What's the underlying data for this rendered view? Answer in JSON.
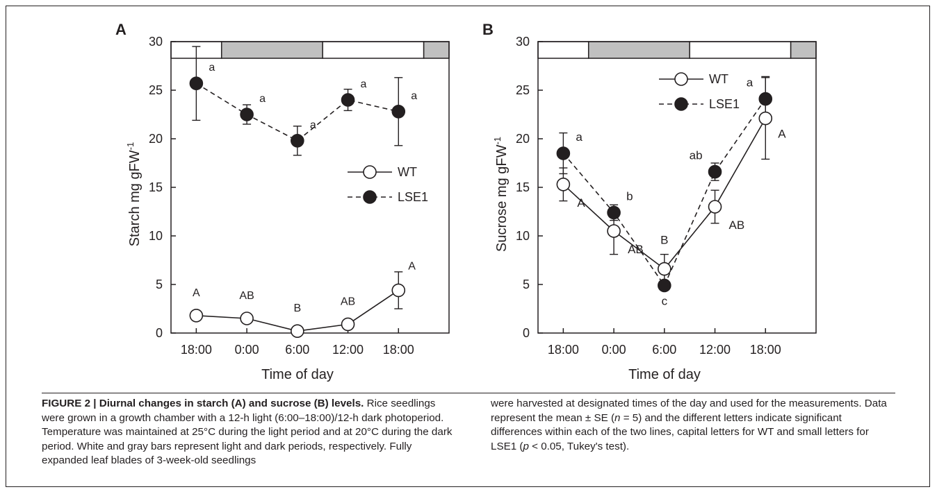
{
  "colors": {
    "dark_period": "#c0c0c0",
    "ink": "#231f20",
    "wt_fill": "#ffffff",
    "lse1_fill": "#231f20"
  },
  "chart_data": [
    {
      "type": "line",
      "panel_label": "A",
      "xlabel": "Time of day",
      "ylabel": "Starch    mg gFW-1",
      "ylabel_main": "Starch    mg gFW",
      "ylabel_sup": "-1",
      "ylim": [
        0,
        30
      ],
      "yticks": [
        "0",
        "5",
        "10",
        "15",
        "20",
        "25",
        "30"
      ],
      "categories": [
        "18:00",
        "0:00",
        "6:00",
        "12:00",
        "18:00"
      ],
      "photoperiod_bars": [
        {
          "period": "light",
          "from": 0,
          "to": 1
        },
        {
          "period": "dark",
          "from": 1,
          "to": 3
        },
        {
          "period": "light",
          "from": 3,
          "to": 5
        },
        {
          "period": "dark",
          "from": 5,
          "to": 5.5
        }
      ],
      "legend_position": "right-middle",
      "series": [
        {
          "name": "WT",
          "marker": "open-circle",
          "line": "solid",
          "values": [
            1.8,
            1.5,
            0.2,
            0.9,
            4.4
          ],
          "errors": [
            0,
            0,
            0,
            0,
            1.9
          ],
          "letters": [
            "A",
            "AB",
            "B",
            "AB",
            "A"
          ]
        },
        {
          "name": "LSE1",
          "marker": "filled-circle",
          "line": "dashed",
          "values": [
            25.7,
            22.5,
            19.8,
            24.0,
            22.8
          ],
          "errors": [
            3.8,
            1.0,
            1.5,
            1.1,
            3.5
          ],
          "letters": [
            "a",
            "a",
            "a",
            "a",
            "a"
          ]
        }
      ]
    },
    {
      "type": "line",
      "panel_label": "B",
      "xlabel": "Time of day",
      "ylabel": "Sucrose    mg gFW-1",
      "ylabel_main": "Sucrose    mg gFW",
      "ylabel_sup": "-1",
      "ylim": [
        0,
        30
      ],
      "yticks": [
        "0",
        "5",
        "10",
        "15",
        "20",
        "25",
        "30"
      ],
      "categories": [
        "18:00",
        "0:00",
        "6:00",
        "12:00",
        "18:00"
      ],
      "photoperiod_bars": [
        {
          "period": "light",
          "from": 0,
          "to": 1
        },
        {
          "period": "dark",
          "from": 1,
          "to": 3
        },
        {
          "period": "light",
          "from": 3,
          "to": 5
        },
        {
          "period": "dark",
          "from": 5,
          "to": 5.5
        }
      ],
      "legend_position": "top-right",
      "series": [
        {
          "name": "WT",
          "marker": "open-circle",
          "line": "solid",
          "values": [
            15.3,
            10.5,
            6.6,
            13.0,
            22.1
          ],
          "errors": [
            1.7,
            2.4,
            1.5,
            1.7,
            4.2
          ],
          "letters": [
            "A",
            "AB",
            "B",
            "AB",
            "A"
          ]
        },
        {
          "name": "LSE1",
          "marker": "filled-circle",
          "line": "dashed",
          "values": [
            18.5,
            12.4,
            4.9,
            16.6,
            24.1
          ],
          "errors": [
            2.1,
            0.8,
            0.4,
            0.9,
            2.3
          ],
          "letters": [
            "a",
            "b",
            "c",
            "ab",
            "a"
          ]
        }
      ]
    }
  ],
  "caption": {
    "label": "FIGURE 2 | Diurnal changes in starch (A) and sucrose (B) levels.",
    "text_left": "Rice seedlings were grown in a growth chamber with a 12-h light (6:00–18:00)/12-h dark photoperiod. Temperature was maintained at 25°C during the light period and at 20°C during the dark period. White and gray bars represent light and dark periods, respectively. Fully expanded leaf blades of 3-week-old seedlings",
    "text_right_1": "were harvested at designated times of the day and used for the measurements. Data represent the mean ± SE (",
    "text_right_n": "n",
    "text_right_2": " = 5) and the different letters indicate significant differences within each of the two lines, capital letters for WT and small letters for LSE1 (",
    "text_right_p": "p",
    "text_right_3": " < 0.05, Tukey's test)."
  }
}
